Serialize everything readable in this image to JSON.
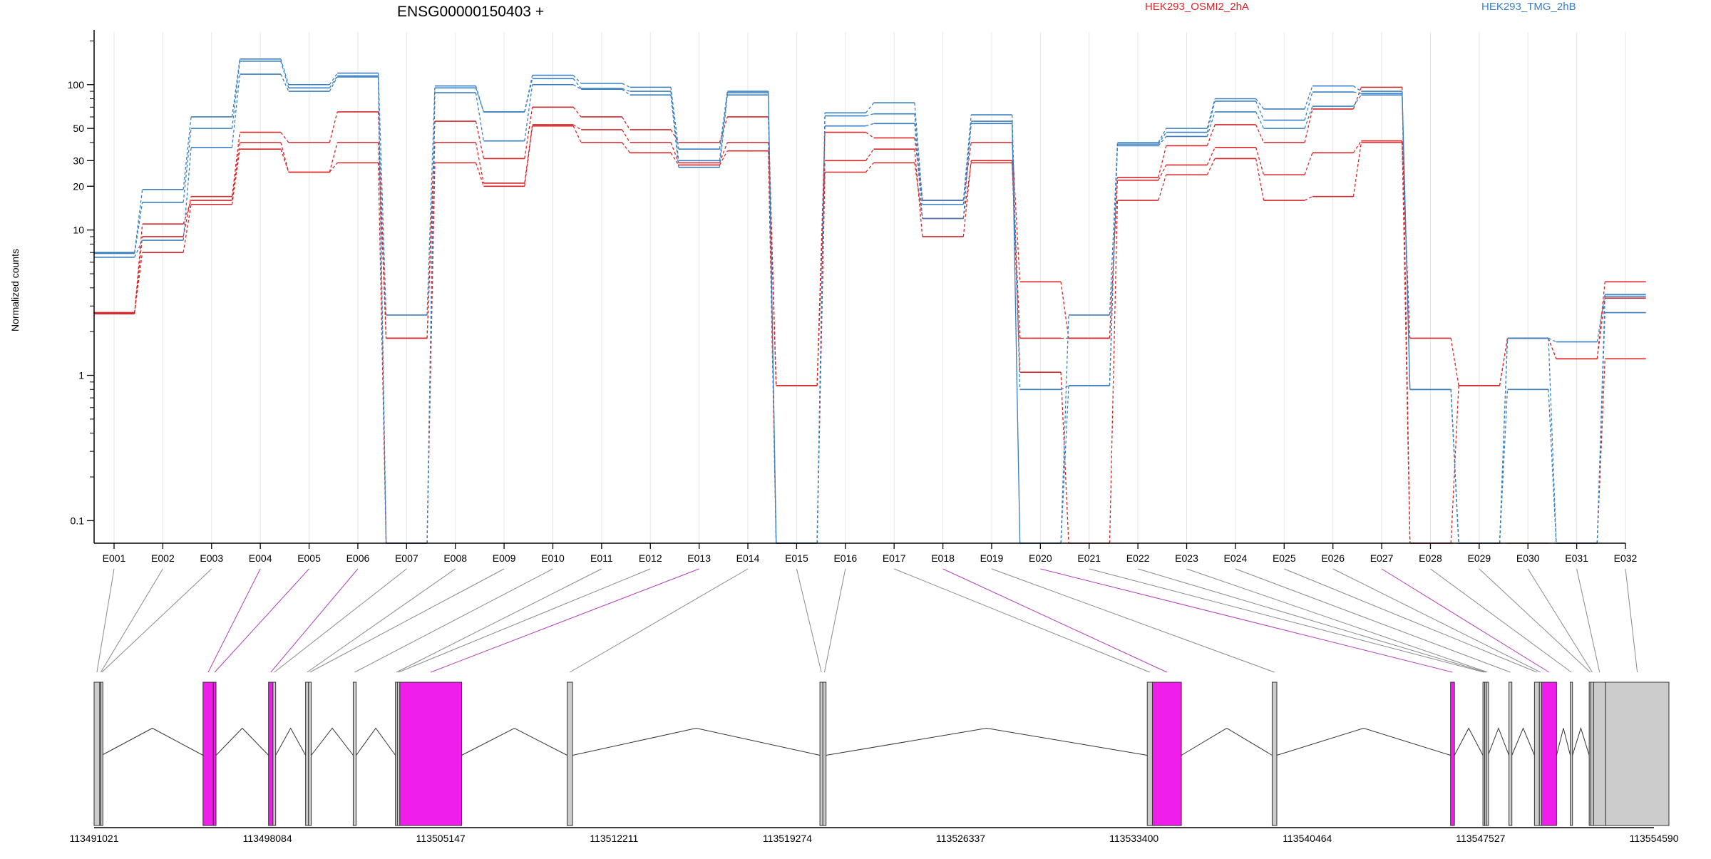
{
  "chart_data": {
    "type": "line",
    "title": "ENSG00000150403 +",
    "ylabel": "Normalized counts",
    "yscale": "log",
    "ylim": [
      0.07,
      230
    ],
    "yticks": [
      {
        "value": 0.1,
        "label": "0.1"
      },
      {
        "value": 1,
        "label": "1"
      },
      {
        "value": 10,
        "label": "10"
      },
      {
        "value": 20,
        "label": "20"
      },
      {
        "value": 30,
        "label": "30"
      },
      {
        "value": 50,
        "label": "50"
      },
      {
        "value": 100,
        "label": "100"
      }
    ],
    "legend": [
      {
        "label": "HEK293_OSMI2_2hA",
        "color": "#d62728"
      },
      {
        "label": "HEK293_TMG_2hB",
        "color": "#3a7fc1"
      }
    ],
    "categories": [
      "E001",
      "E002",
      "E003",
      "E004",
      "E005",
      "E006",
      "E007",
      "E008",
      "E009",
      "E010",
      "E011",
      "E012",
      "E013",
      "E014",
      "E015",
      "E016",
      "E017",
      "E018",
      "E019",
      "E020",
      "E021",
      "E022",
      "E023",
      "E024",
      "E025",
      "E026",
      "E027",
      "E028",
      "E029",
      "E030",
      "E031",
      "E032"
    ],
    "highlighted": [
      "E004",
      "E005",
      "E006",
      "E013",
      "E018",
      "E020",
      "E027"
    ],
    "series": [
      {
        "group": "HEK293_OSMI2_2hA",
        "color": "#d62728",
        "values": [
          2.7,
          9,
          17,
          47,
          40,
          65,
          1.8,
          56,
          31,
          70,
          60,
          49,
          40,
          60,
          0.85,
          47,
          43,
          16,
          40,
          4.4,
          1.8,
          23,
          38,
          53,
          40,
          68,
          96,
          0.07,
          0.85,
          1.8,
          1.3,
          4.4
        ]
      },
      {
        "group": "HEK293_OSMI2_2hA",
        "color": "#d62728",
        "values": [
          2.65,
          11,
          16,
          40,
          25,
          40,
          1.8,
          40,
          21,
          53,
          49,
          40,
          29,
          40,
          0.85,
          30,
          36,
          9,
          30,
          1.8,
          1.8,
          22,
          28,
          37,
          24,
          34,
          41,
          1.8,
          0.85,
          1.8,
          1.3,
          3.4
        ]
      },
      {
        "group": "HEK293_OSMI2_2hA",
        "color": "#d62728",
        "values": [
          2.7,
          7,
          15,
          36,
          25,
          29,
          0.07,
          29,
          20,
          52,
          40,
          34,
          28,
          35,
          0.07,
          25,
          29,
          12,
          29,
          1.05,
          0.07,
          16,
          24,
          31,
          16,
          17,
          40,
          0.07,
          0.07,
          0.07,
          0.07,
          1.3
        ]
      },
      {
        "group": "HEK293_TMG_2hB",
        "color": "#3a7fc1",
        "values": [
          7,
          19,
          60,
          150,
          100,
          120,
          2.6,
          98,
          65,
          116,
          102,
          96,
          36,
          90,
          0.07,
          64,
          75,
          16,
          62,
          0.8,
          0.85,
          40,
          50,
          80,
          68,
          98,
          90,
          0.8,
          0.07,
          1.8,
          1.7,
          3.6
        ]
      },
      {
        "group": "HEK293_TMG_2hB",
        "color": "#3a7fc1",
        "values": [
          6.9,
          15.5,
          50,
          145,
          95,
          115,
          0.07,
          95,
          65,
          110,
          94,
          90,
          30,
          88,
          0.07,
          61,
          63,
          15,
          56,
          0.07,
          2.6,
          39,
          47,
          77,
          57,
          89,
          87,
          0.8,
          0.07,
          1.8,
          0.07,
          3.5
        ]
      },
      {
        "group": "HEK293_TMG_2hB",
        "color": "#3a7fc1",
        "values": [
          6.5,
          8.5,
          37,
          118,
          90,
          113,
          0.07,
          88,
          41,
          100,
          93,
          85,
          27,
          85,
          0.07,
          52,
          54,
          12,
          54,
          0.07,
          0.85,
          38,
          44,
          65,
          50,
          71,
          85,
          0.8,
          0.07,
          0.8,
          0.07,
          2.7
        ]
      }
    ],
    "gene_model": {
      "coordinate_ticks": [
        "113491021",
        "113498084",
        "113505147",
        "113512211",
        "113519274",
        "113526337",
        "113533400",
        "113540464",
        "113547527",
        "113554590"
      ],
      "exons": [
        {
          "id": "E001",
          "start": 113491021,
          "end": 113491250,
          "highlighted": false
        },
        {
          "id": "E002",
          "start": 113491250,
          "end": 113491290,
          "highlighted": false
        },
        {
          "id": "E003",
          "start": 113491290,
          "end": 113491330,
          "highlighted": false
        },
        {
          "id": "E004",
          "start": 113495460,
          "end": 113495880,
          "highlighted": true
        },
        {
          "id": "E005",
          "start": 113495880,
          "end": 113495990,
          "highlighted": true
        },
        {
          "id": "E006",
          "start": 113498130,
          "end": 113498310,
          "highlighted": true
        },
        {
          "id": "E007",
          "start": 113498310,
          "end": 113498420,
          "highlighted": false
        },
        {
          "id": "E008",
          "start": 113499640,
          "end": 113499760,
          "highlighted": false
        },
        {
          "id": "E009",
          "start": 113499760,
          "end": 113499870,
          "highlighted": false
        },
        {
          "id": "E010",
          "start": 113501580,
          "end": 113501700,
          "highlighted": false
        },
        {
          "id": "E011",
          "start": 113503300,
          "end": 113503380,
          "highlighted": false
        },
        {
          "id": "E012",
          "start": 113503380,
          "end": 113503480,
          "highlighted": false
        },
        {
          "id": "E013",
          "start": 113503480,
          "end": 113506000,
          "highlighted": true
        },
        {
          "id": "E014",
          "start": 113510300,
          "end": 113510520,
          "highlighted": false
        },
        {
          "id": "E015",
          "start": 113520600,
          "end": 113520720,
          "highlighted": false
        },
        {
          "id": "E016",
          "start": 113520720,
          "end": 113520850,
          "highlighted": false
        },
        {
          "id": "E017",
          "start": 113533940,
          "end": 113534150,
          "highlighted": false
        },
        {
          "id": "E018",
          "start": 113534150,
          "end": 113535330,
          "highlighted": true
        },
        {
          "id": "E019",
          "start": 113539030,
          "end": 113539220,
          "highlighted": false
        },
        {
          "id": "E020",
          "start": 113546300,
          "end": 113546460,
          "highlighted": true
        },
        {
          "id": "E021",
          "start": 113547620,
          "end": 113547690,
          "highlighted": false
        },
        {
          "id": "E022",
          "start": 113547690,
          "end": 113547760,
          "highlighted": false
        },
        {
          "id": "E023",
          "start": 113547760,
          "end": 113547830,
          "highlighted": false
        },
        {
          "id": "E024",
          "start": 113548680,
          "end": 113548800,
          "highlighted": false
        },
        {
          "id": "E025",
          "start": 113549720,
          "end": 113549920,
          "highlighted": false
        },
        {
          "id": "E026",
          "start": 113549920,
          "end": 113550010,
          "highlighted": false
        },
        {
          "id": "E027",
          "start": 113550010,
          "end": 113550620,
          "highlighted": true
        },
        {
          "id": "E028",
          "start": 113551180,
          "end": 113551270,
          "highlighted": false
        },
        {
          "id": "E029",
          "start": 113551950,
          "end": 113552020,
          "highlighted": false
        },
        {
          "id": "E030",
          "start": 113552020,
          "end": 113552130,
          "highlighted": false
        },
        {
          "id": "E031",
          "start": 113552130,
          "end": 113552620,
          "highlighted": false
        },
        {
          "id": "E032",
          "start": 113552620,
          "end": 113555200,
          "highlighted": false
        }
      ]
    },
    "colors": {
      "highlight": "#f01eea",
      "exon": "#cccccc",
      "grid": "#e6e6e6"
    }
  }
}
